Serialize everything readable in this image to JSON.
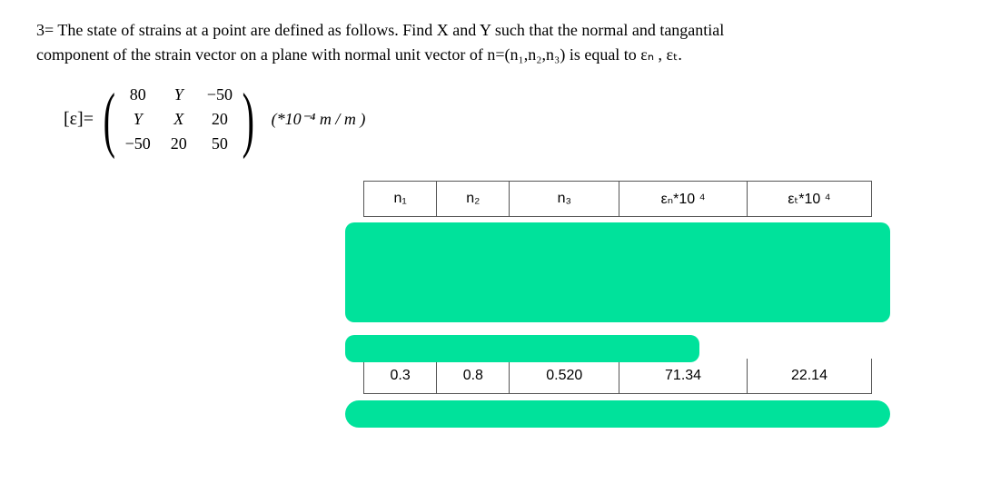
{
  "problem": {
    "line1_prefix": "3= The state of strains at a point are defined as follows. Find X and Y such that the normal and tangantial",
    "line2": "component of the strain vector on a plane with normal unit vector of  n=(n₁,n₂,n₃) is equal to  εₙ , εₜ."
  },
  "matrix": {
    "lhs": "[ε]=",
    "cells": [
      [
        "80",
        "Y",
        "−50"
      ],
      [
        "Y",
        "X",
        "20"
      ],
      [
        "−50",
        "20",
        "50"
      ]
    ],
    "unit": "(*10⁻⁴ m / m )"
  },
  "table": {
    "headers": [
      "n₁",
      "n₂",
      "n₃",
      "εₙ*10 ⁴",
      "εₜ*10 ⁴"
    ],
    "visible_row": [
      "0.3",
      "0.8",
      "0.520",
      "71.34",
      "22.14"
    ]
  },
  "colors": {
    "highlight": "#00e29b",
    "border": "#555555",
    "text": "#000000",
    "background": "#ffffff"
  }
}
